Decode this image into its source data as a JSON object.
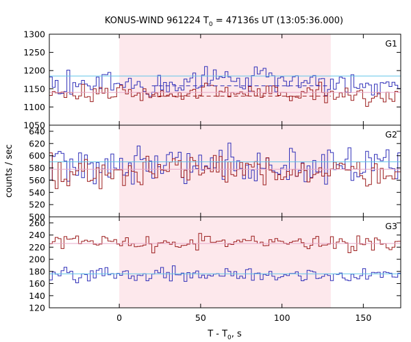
{
  "chart_data": {
    "type": "line",
    "title": "KONUS-WIND 961224 T",
    "title_sub": "0",
    "title_rest": " = 47136s UT (13:05:36.000)",
    "xlabel": "T - T",
    "xlabel_sub": "0",
    "xlabel_rest": ", s",
    "ylabel": "counts / sec",
    "xlim": [
      -43,
      173
    ],
    "xticks": [
      0,
      50,
      100,
      150
    ],
    "shaded_interval": [
      0,
      130
    ],
    "colors": {
      "shade": "#fde8ec",
      "blue": "#2e2eb8",
      "red": "#9b1b1b",
      "blue_bg": "#5fc4e8",
      "red_bg": "#e7a8c8"
    },
    "panels": [
      {
        "name": "G1",
        "ylim": [
          1050,
          1300
        ],
        "yticks": [
          1050,
          1100,
          1150,
          1200,
          1250,
          1300
        ],
        "series": [
          {
            "name": "blue",
            "mean": 1160,
            "noise": 25,
            "burst_bump": 25
          },
          {
            "name": "red",
            "mean": 1133,
            "noise": 20,
            "burst_bump": 12
          }
        ],
        "background": [
          {
            "name": "blue",
            "level": 1185
          },
          {
            "name": "red",
            "level": 1140
          }
        ],
        "dashed_levels": [
          {
            "name": "blue",
            "level": 1158
          },
          {
            "name": "red",
            "level": 1130
          }
        ]
      },
      {
        "name": "G2",
        "ylim": [
          500,
          650
        ],
        "yticks": [
          500,
          520,
          540,
          560,
          580,
          600,
          620,
          640
        ],
        "series": [
          {
            "name": "blue",
            "mean": 585,
            "noise": 25,
            "burst_bump": 0
          },
          {
            "name": "red",
            "mean": 575,
            "noise": 18,
            "burst_bump": 0
          }
        ],
        "background": [
          {
            "name": "blue",
            "level": 590
          },
          {
            "name": "red",
            "level": 578
          }
        ],
        "dashed_levels": []
      },
      {
        "name": "G3",
        "ylim": [
          120,
          270
        ],
        "yticks": [
          120,
          140,
          160,
          180,
          200,
          220,
          240,
          260
        ],
        "series": [
          {
            "name": "blue",
            "mean": 175,
            "noise": 9,
            "burst_bump": 0
          },
          {
            "name": "red",
            "mean": 227,
            "noise": 10,
            "burst_bump": 0
          }
        ],
        "background": [
          {
            "name": "blue",
            "level": 176
          },
          {
            "name": "red",
            "level": 226
          }
        ],
        "dashed_levels": []
      }
    ]
  }
}
